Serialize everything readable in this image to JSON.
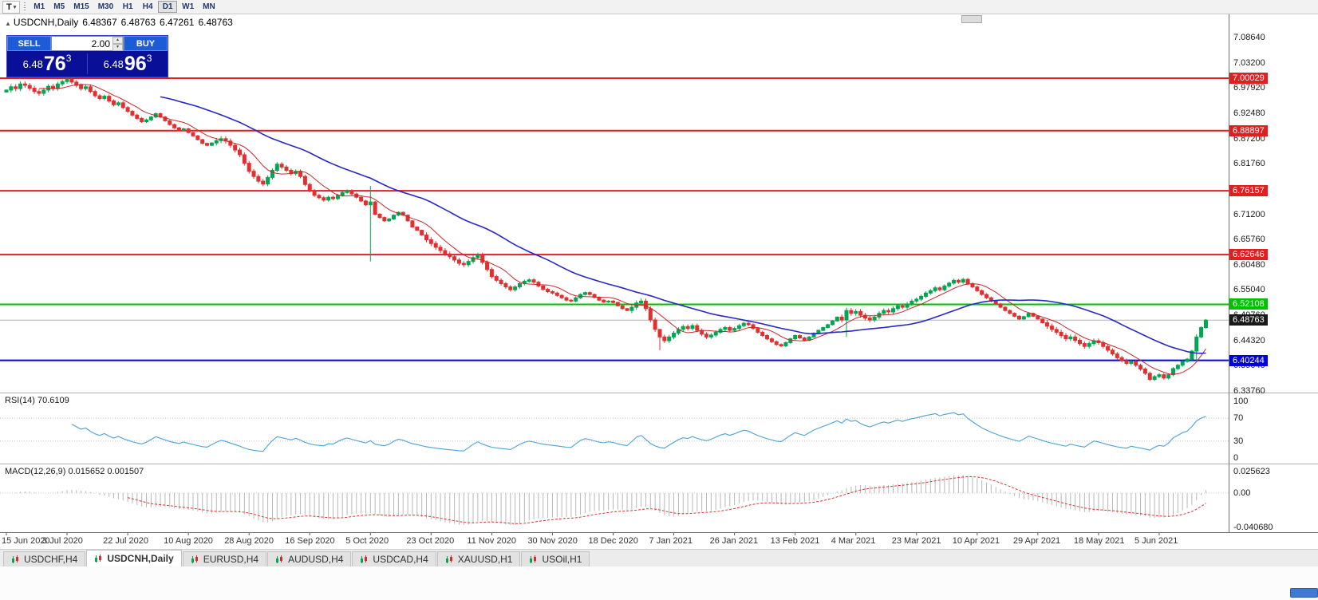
{
  "toolbar": {
    "tool_label": "T",
    "timeframes": [
      "M1",
      "M5",
      "M15",
      "M30",
      "H1",
      "H4",
      "D1",
      "W1",
      "MN"
    ],
    "active_timeframe": "D1"
  },
  "chart": {
    "symbol_title": "USDCNH,Daily",
    "ohlc": {
      "open": "6.48367",
      "high": "6.48763",
      "low": "6.47261",
      "close": "6.48763"
    },
    "quote_panel": {
      "sell_label": "SELL",
      "buy_label": "BUY",
      "volume": "2.00",
      "sell_price": {
        "prefix": "6.48",
        "big": "76",
        "sup": "3"
      },
      "buy_price": {
        "prefix": "6.48",
        "big": "96",
        "sup": "3"
      }
    }
  },
  "tabs": [
    {
      "label": "USDCHF,H4",
      "active": false
    },
    {
      "label": "USDCNH,Daily",
      "active": true
    },
    {
      "label": "EURUSD,H4",
      "active": false
    },
    {
      "label": "AUDUSD,H4",
      "active": false
    },
    {
      "label": "USDCAD,H4",
      "active": false
    },
    {
      "label": "XAUUSD,H1",
      "active": false
    },
    {
      "label": "USOil,H1",
      "active": false
    }
  ],
  "chart_data": {
    "type": "candlestick",
    "symbol": "USDCNH",
    "timeframe": "Daily",
    "title": "USDCNH,Daily 6.48367 6.48763 6.47261 6.48763",
    "x_labels": [
      "15 Jun 2020",
      "3 Jul 2020",
      "22 Jul 2020",
      "10 Aug 2020",
      "28 Aug 2020",
      "16 Sep 2020",
      "5 Oct 2020",
      "23 Oct 2020",
      "11 Nov 2020",
      "30 Nov 2020",
      "18 Dec 2020",
      "7 Jan 2021",
      "26 Jan 2021",
      "13 Feb 2021",
      "4 Mar 2021",
      "23 Mar 2021",
      "10 Apr 2021",
      "29 Apr 2021",
      "18 May 2021",
      "5 Jun 2021"
    ],
    "bars_per_label": 13,
    "y_axis_ticks": [
      "7.08640",
      "7.03200",
      "6.97920",
      "6.92480",
      "6.87200",
      "6.81760",
      "6.76480",
      "6.71200",
      "6.65760",
      "6.60480",
      "6.55040",
      "6.49760",
      "6.44320",
      "6.39040",
      "6.33760"
    ],
    "y_range": {
      "top": 7.0864,
      "bottom": 6.3376
    },
    "closes": [
      6.975,
      6.982,
      6.978,
      6.988,
      6.985,
      6.979,
      6.972,
      6.968,
      6.975,
      6.983,
      6.978,
      6.988,
      6.993,
      6.998,
      6.992,
      6.985,
      6.978,
      6.982,
      6.972,
      6.963,
      6.957,
      6.962,
      6.952,
      6.944,
      6.948,
      6.938,
      6.93,
      6.922,
      6.915,
      6.908,
      6.912,
      6.918,
      6.925,
      6.918,
      6.91,
      6.902,
      6.895,
      6.89,
      6.893,
      6.885,
      6.878,
      6.87,
      6.862,
      6.858,
      6.863,
      6.868,
      6.872,
      6.867,
      6.858,
      6.848,
      6.838,
      6.82,
      6.803,
      6.792,
      6.782,
      6.776,
      6.79,
      6.805,
      6.818,
      6.812,
      6.805,
      6.798,
      6.803,
      6.792,
      6.775,
      6.762,
      6.752,
      6.747,
      6.742,
      6.748,
      6.745,
      6.752,
      6.758,
      6.762,
      6.755,
      6.748,
      6.74,
      6.732,
      6.738,
      6.712,
      6.705,
      6.698,
      6.702,
      6.71,
      6.716,
      6.71,
      6.698,
      6.685,
      6.678,
      6.668,
      6.658,
      6.65,
      6.642,
      6.635,
      6.628,
      6.622,
      6.615,
      6.608,
      6.605,
      6.612,
      6.62,
      6.626,
      6.61,
      6.595,
      6.58,
      6.572,
      6.565,
      6.558,
      6.552,
      6.558,
      6.565,
      6.57,
      6.573,
      6.568,
      6.56,
      6.553,
      6.548,
      6.545,
      6.54,
      6.535,
      6.53,
      6.528,
      6.535,
      6.542,
      6.546,
      6.542,
      6.536,
      6.53,
      6.526,
      6.528,
      6.525,
      6.518,
      6.512,
      6.508,
      6.515,
      6.524,
      6.528,
      6.512,
      6.488,
      6.468,
      6.452,
      6.444,
      6.452,
      6.46,
      6.468,
      6.474,
      6.47,
      6.476,
      6.466,
      6.458,
      6.452,
      6.456,
      6.462,
      6.468,
      6.472,
      6.466,
      6.47,
      6.476,
      6.481,
      6.478,
      6.47,
      6.462,
      6.455,
      6.448,
      6.442,
      6.436,
      6.433,
      6.44,
      6.448,
      6.455,
      6.45,
      6.445,
      6.452,
      6.46,
      6.466,
      6.472,
      6.478,
      6.486,
      6.494,
      6.488,
      6.508,
      6.502,
      6.506,
      6.498,
      6.492,
      6.488,
      6.494,
      6.502,
      6.508,
      6.505,
      6.512,
      6.518,
      6.515,
      6.522,
      6.528,
      6.532,
      6.538,
      6.545,
      6.55,
      6.556,
      6.552,
      6.56,
      6.566,
      6.572,
      6.568,
      6.574,
      6.565,
      6.558,
      6.55,
      6.542,
      6.535,
      6.528,
      6.522,
      6.515,
      6.508,
      6.502,
      6.496,
      6.49,
      6.495,
      6.502,
      6.496,
      6.49,
      6.482,
      6.475,
      6.468,
      6.462,
      6.455,
      6.448,
      6.452,
      6.445,
      6.438,
      6.432,
      6.438,
      6.444,
      6.44,
      6.432,
      6.424,
      6.416,
      6.408,
      6.402,
      6.396,
      6.4,
      6.392,
      6.384,
      6.375,
      6.362,
      6.368,
      6.372,
      6.365,
      6.372,
      6.385,
      6.392,
      6.4,
      6.405,
      6.422,
      6.452,
      6.472,
      6.48763
    ],
    "wide_range_bars": [
      {
        "index": 78,
        "high": 6.772,
        "low": 6.612
      },
      {
        "index": 140,
        "high": 6.462,
        "low": 6.424
      },
      {
        "index": 180,
        "high": 6.514,
        "low": 6.452
      },
      {
        "index": 255,
        "high": 6.458,
        "low": 6.398
      }
    ],
    "candle_colors": {
      "up": "#00a651",
      "down": "#e03030"
    },
    "moving_averages": [
      {
        "period": 8,
        "color": "#c82828",
        "width": 1
      },
      {
        "period": 34,
        "color": "#2828c8",
        "width": 1.6
      }
    ],
    "horizontal_levels": [
      {
        "price": 7.00029,
        "label": "7.00029",
        "color": "#e02020"
      },
      {
        "price": 6.88897,
        "label": "6.88897",
        "color": "#e02020"
      },
      {
        "price": 6.76157,
        "label": "6.76157",
        "color": "#e02020"
      },
      {
        "price": 6.62646,
        "label": "6.62646",
        "color": "#e02020"
      },
      {
        "price": 6.52108,
        "label": "6.52108",
        "color": "#00c000"
      },
      {
        "price": 6.40244,
        "label": "6.40244",
        "color": "#0000e0"
      }
    ],
    "current_price": {
      "price": 6.48763,
      "label": "6.48763",
      "color": "#1a1a1a"
    },
    "indicators": [
      {
        "name": "RSI",
        "label": "RSI(14) 70.6109",
        "period": 14,
        "color": "#4aa3d8",
        "ticks": [
          {
            "v": 100,
            "label": "100"
          },
          {
            "v": 70,
            "label": "70"
          },
          {
            "v": 30,
            "label": "30"
          },
          {
            "v": 0,
            "label": "0"
          }
        ],
        "guides": [
          70,
          30
        ]
      },
      {
        "name": "MACD",
        "label": "MACD(12,26,9) 0.015652 0.001507",
        "fast": 12,
        "slow": 26,
        "signal": 9,
        "hist_color": "#b8b8b8",
        "signal_color": "#e03030",
        "ticks": [
          {
            "v": 0.025623,
            "label": "0.025623"
          },
          {
            "v": 0,
            "label": "0.00"
          },
          {
            "v": -0.04068,
            "label": "-0.040680"
          }
        ]
      }
    ],
    "legend_position": "none",
    "grid": false
  }
}
